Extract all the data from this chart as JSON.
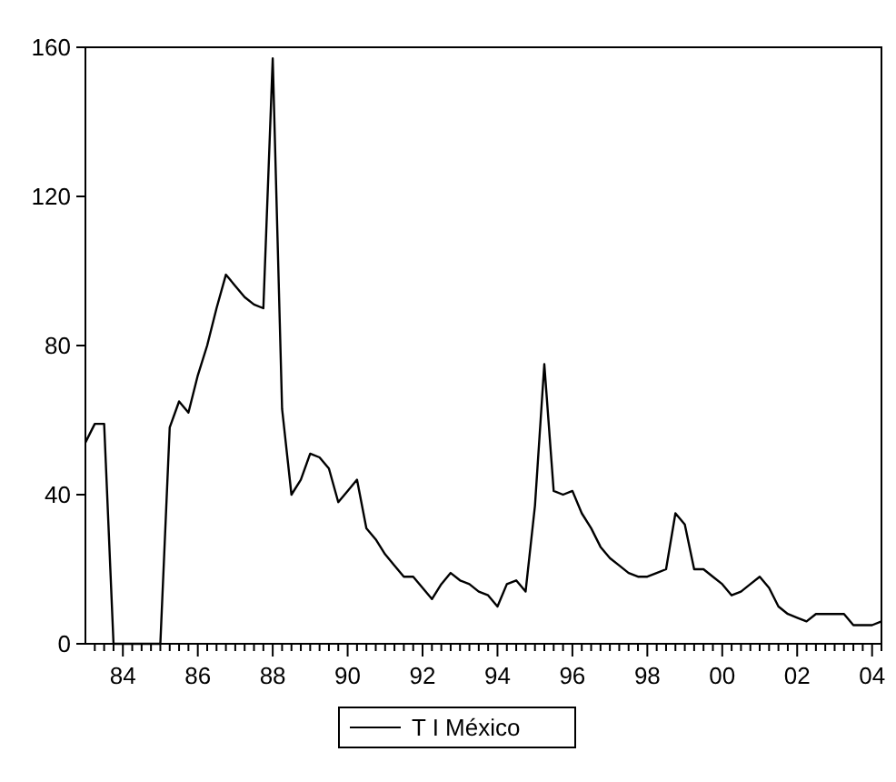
{
  "chart_data": {
    "type": "line",
    "x": [
      1983,
      1983.25,
      1983.5,
      1983.75,
      1984,
      1984.25,
      1984.5,
      1984.75,
      1985,
      1985.25,
      1985.5,
      1985.75,
      1986,
      1986.25,
      1986.5,
      1986.75,
      1987,
      1987.25,
      1987.5,
      1987.75,
      1988,
      1988.25,
      1988.5,
      1988.75,
      1989,
      1989.25,
      1989.5,
      1989.75,
      1990,
      1990.25,
      1990.5,
      1990.75,
      1991,
      1991.25,
      1991.5,
      1991.75,
      1992,
      1992.25,
      1992.5,
      1992.75,
      1993,
      1993.25,
      1993.5,
      1993.75,
      1994,
      1994.25,
      1994.5,
      1994.75,
      1995,
      1995.25,
      1995.5,
      1995.75,
      1996,
      1996.25,
      1996.5,
      1996.75,
      1997,
      1997.25,
      1997.5,
      1997.75,
      1998,
      1998.25,
      1998.5,
      1998.75,
      1999,
      1999.25,
      1999.5,
      1999.75,
      2000,
      2000.25,
      2000.5,
      2000.75,
      2001,
      2001.25,
      2001.5,
      2001.75,
      2002,
      2002.25,
      2002.5,
      2002.75,
      2003,
      2003.25,
      2003.5,
      2003.75,
      2004,
      2004.25
    ],
    "series": [
      {
        "name": "T I México",
        "color": "#000000",
        "values": [
          54,
          59,
          59,
          0,
          0,
          0,
          0,
          0,
          0,
          58,
          65,
          62,
          72,
          80,
          90,
          99,
          96,
          93,
          91,
          90,
          157,
          63,
          40,
          44,
          51,
          50,
          47,
          38,
          41,
          44,
          31,
          28,
          24,
          21,
          18,
          18,
          15,
          12,
          16,
          19,
          17,
          16,
          14,
          13,
          10,
          16,
          17,
          14,
          37,
          75,
          41,
          40,
          41,
          35,
          31,
          26,
          23,
          21,
          19,
          18,
          18,
          19,
          20,
          35,
          32,
          20,
          20,
          18,
          16,
          13,
          14,
          16,
          18,
          15,
          10,
          8,
          7,
          6,
          8,
          8,
          8,
          8,
          5,
          5,
          5,
          6
        ]
      }
    ],
    "xlim": [
      1983,
      2004.25
    ],
    "xticks": [
      {
        "value": 1983.25,
        "label": null
      },
      {
        "value": 1983.5,
        "label": null
      },
      {
        "value": 1983.75,
        "label": null
      },
      {
        "value": 1984,
        "label": "84"
      },
      {
        "value": 1984.25,
        "label": null
      },
      {
        "value": 1984.5,
        "label": null
      },
      {
        "value": 1984.75,
        "label": null
      },
      {
        "value": 1985,
        "label": null
      },
      {
        "value": 1985.25,
        "label": null
      },
      {
        "value": 1985.5,
        "label": null
      },
      {
        "value": 1985.75,
        "label": null
      },
      {
        "value": 1986,
        "label": "86"
      },
      {
        "value": 1986.25,
        "label": null
      },
      {
        "value": 1986.5,
        "label": null
      },
      {
        "value": 1986.75,
        "label": null
      },
      {
        "value": 1987,
        "label": null
      },
      {
        "value": 1987.25,
        "label": null
      },
      {
        "value": 1987.5,
        "label": null
      },
      {
        "value": 1987.75,
        "label": null
      },
      {
        "value": 1988,
        "label": "88"
      },
      {
        "value": 1988.25,
        "label": null
      },
      {
        "value": 1988.5,
        "label": null
      },
      {
        "value": 1988.75,
        "label": null
      },
      {
        "value": 1989,
        "label": null
      },
      {
        "value": 1989.25,
        "label": null
      },
      {
        "value": 1989.5,
        "label": null
      },
      {
        "value": 1989.75,
        "label": null
      },
      {
        "value": 1990,
        "label": "90"
      },
      {
        "value": 1990.25,
        "label": null
      },
      {
        "value": 1990.5,
        "label": null
      },
      {
        "value": 1990.75,
        "label": null
      },
      {
        "value": 1991,
        "label": null
      },
      {
        "value": 1991.25,
        "label": null
      },
      {
        "value": 1991.5,
        "label": null
      },
      {
        "value": 1991.75,
        "label": null
      },
      {
        "value": 1992,
        "label": "92"
      },
      {
        "value": 1992.25,
        "label": null
      },
      {
        "value": 1992.5,
        "label": null
      },
      {
        "value": 1992.75,
        "label": null
      },
      {
        "value": 1993,
        "label": null
      },
      {
        "value": 1993.25,
        "label": null
      },
      {
        "value": 1993.5,
        "label": null
      },
      {
        "value": 1993.75,
        "label": null
      },
      {
        "value": 1994,
        "label": "94"
      },
      {
        "value": 1994.25,
        "label": null
      },
      {
        "value": 1994.5,
        "label": null
      },
      {
        "value": 1994.75,
        "label": null
      },
      {
        "value": 1995,
        "label": null
      },
      {
        "value": 1995.25,
        "label": null
      },
      {
        "value": 1995.5,
        "label": null
      },
      {
        "value": 1995.75,
        "label": null
      },
      {
        "value": 1996,
        "label": "96"
      },
      {
        "value": 1996.25,
        "label": null
      },
      {
        "value": 1996.5,
        "label": null
      },
      {
        "value": 1996.75,
        "label": null
      },
      {
        "value": 1997,
        "label": null
      },
      {
        "value": 1997.25,
        "label": null
      },
      {
        "value": 1997.5,
        "label": null
      },
      {
        "value": 1997.75,
        "label": null
      },
      {
        "value": 1998,
        "label": "98"
      },
      {
        "value": 1998.25,
        "label": null
      },
      {
        "value": 1998.5,
        "label": null
      },
      {
        "value": 1998.75,
        "label": null
      },
      {
        "value": 1999,
        "label": null
      },
      {
        "value": 1999.25,
        "label": null
      },
      {
        "value": 1999.5,
        "label": null
      },
      {
        "value": 1999.75,
        "label": null
      },
      {
        "value": 2000,
        "label": "00"
      },
      {
        "value": 2000.25,
        "label": null
      },
      {
        "value": 2000.5,
        "label": null
      },
      {
        "value": 2000.75,
        "label": null
      },
      {
        "value": 2001,
        "label": null
      },
      {
        "value": 2001.25,
        "label": null
      },
      {
        "value": 2001.5,
        "label": null
      },
      {
        "value": 2001.75,
        "label": null
      },
      {
        "value": 2002,
        "label": "02"
      },
      {
        "value": 2002.25,
        "label": null
      },
      {
        "value": 2002.5,
        "label": null
      },
      {
        "value": 2002.75,
        "label": null
      },
      {
        "value": 2003,
        "label": null
      },
      {
        "value": 2003.25,
        "label": null
      },
      {
        "value": 2003.5,
        "label": null
      },
      {
        "value": 2003.75,
        "label": null
      },
      {
        "value": 2004,
        "label": "04"
      },
      {
        "value": 2004.25,
        "label": null
      }
    ],
    "ylim": [
      0,
      160
    ],
    "yticks": [
      0,
      40,
      80,
      120,
      160
    ],
    "grid": false,
    "legend": "bottom",
    "marker": "none",
    "line_style": "solid"
  }
}
